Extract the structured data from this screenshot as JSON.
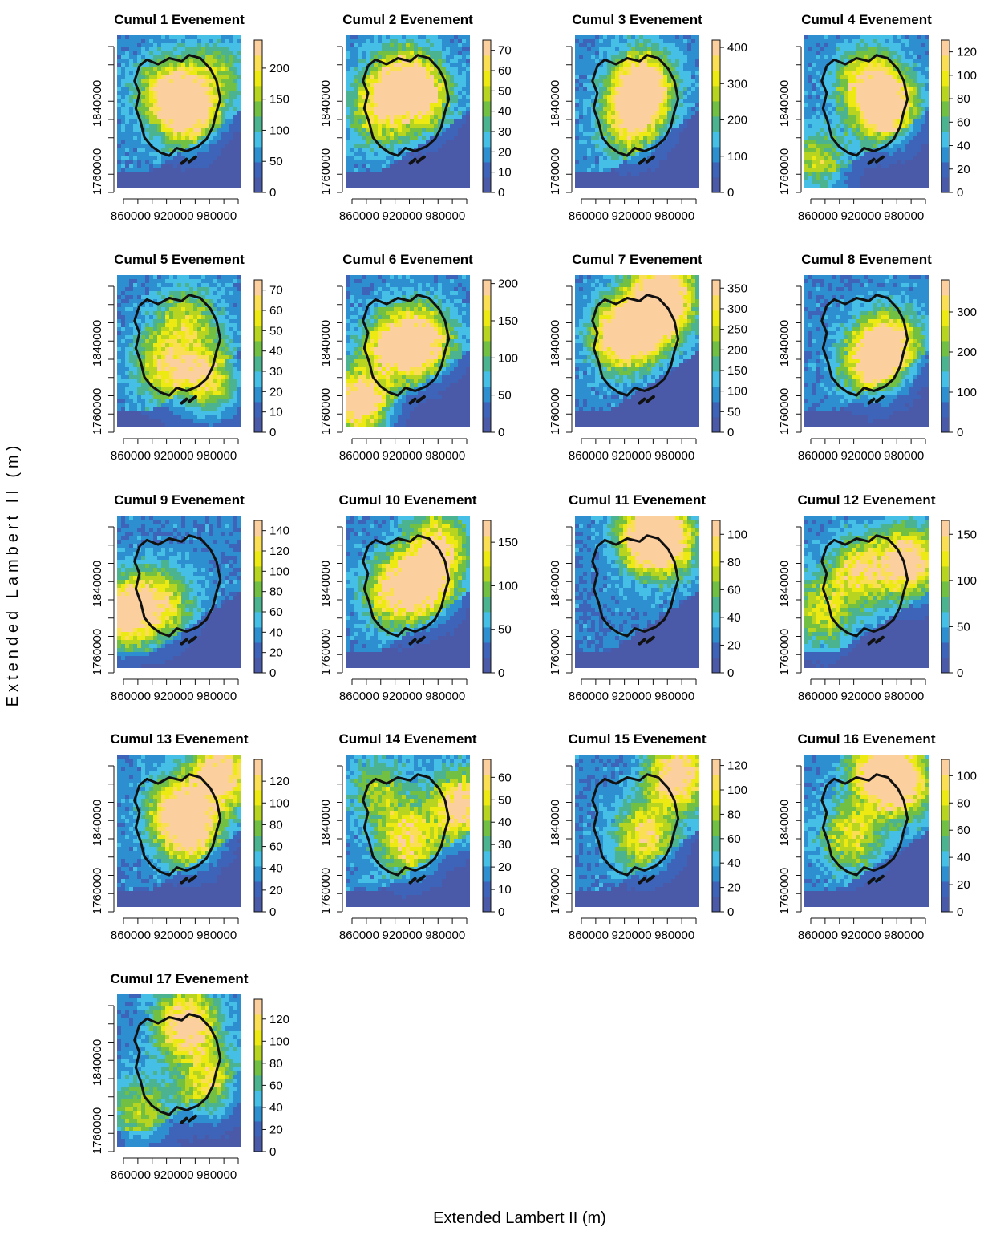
{
  "figure": {
    "xlabel": "Extended Lambert II (m)",
    "ylabel": "Extended Lambert II (m)"
  },
  "palette": [
    "#4a5aa8",
    "#3e64b9",
    "#2e8fd0",
    "#45bfe6",
    "#4bb38f",
    "#72c043",
    "#b7d420",
    "#ecea12",
    "#fadf55",
    "#fccf9e"
  ],
  "chart_data": [
    {
      "type": "heatmap",
      "title": "Cumul 1 Evenement",
      "x_ticks": [
        860000,
        920000,
        980000
      ],
      "y_ticks": [
        1760000,
        1840000
      ],
      "colorbar_ticks": [
        0,
        50,
        100,
        150,
        200
      ],
      "colorbar_range": [
        0,
        245
      ],
      "hotspots": [
        {
          "x": 932000,
          "y": 1832000,
          "v": 230
        },
        {
          "x": 900000,
          "y": 1850000,
          "v": 120
        },
        {
          "x": 970000,
          "y": 1870000,
          "v": 80
        }
      ]
    },
    {
      "type": "heatmap",
      "title": "Cumul 2 Evenement",
      "x_ticks": [
        860000,
        920000,
        980000
      ],
      "y_ticks": [
        1760000,
        1840000
      ],
      "colorbar_ticks": [
        0,
        10,
        20,
        30,
        40,
        50,
        60,
        70
      ],
      "colorbar_range": [
        0,
        75
      ],
      "hotspots": [
        {
          "x": 910000,
          "y": 1860000,
          "v": 50
        },
        {
          "x": 880000,
          "y": 1830000,
          "v": 40
        },
        {
          "x": 940000,
          "y": 1845000,
          "v": 45
        }
      ]
    },
    {
      "type": "heatmap",
      "title": "Cumul 3 Evenement",
      "x_ticks": [
        860000,
        920000,
        980000
      ],
      "y_ticks": [
        1760000,
        1840000
      ],
      "colorbar_ticks": [
        0,
        100,
        200,
        300,
        400
      ],
      "colorbar_range": [
        0,
        420
      ],
      "hotspots": [
        {
          "x": 928000,
          "y": 1855000,
          "v": 400
        },
        {
          "x": 910000,
          "y": 1820000,
          "v": 250
        }
      ]
    },
    {
      "type": "heatmap",
      "title": "Cumul 4 Evenement",
      "x_ticks": [
        860000,
        920000,
        980000
      ],
      "y_ticks": [
        1760000,
        1840000
      ],
      "colorbar_ticks": [
        0,
        20,
        40,
        60,
        80,
        100,
        120
      ],
      "colorbar_range": [
        0,
        130
      ],
      "hotspots": [
        {
          "x": 945000,
          "y": 1835000,
          "v": 120
        },
        {
          "x": 920000,
          "y": 1860000,
          "v": 70
        },
        {
          "x": 855000,
          "y": 1775000,
          "v": 60
        }
      ]
    },
    {
      "type": "heatmap",
      "title": "Cumul 5 Evenement",
      "x_ticks": [
        860000,
        920000,
        980000
      ],
      "y_ticks": [
        1760000,
        1840000
      ],
      "colorbar_ticks": [
        0,
        10,
        20,
        30,
        40,
        50,
        60,
        70
      ],
      "colorbar_range": [
        0,
        75
      ],
      "hotspots": [
        {
          "x": 960000,
          "y": 1800000,
          "v": 55
        },
        {
          "x": 900000,
          "y": 1815000,
          "v": 40
        },
        {
          "x": 930000,
          "y": 1860000,
          "v": 35
        }
      ]
    },
    {
      "type": "heatmap",
      "title": "Cumul 6 Evenement",
      "x_ticks": [
        860000,
        920000,
        980000
      ],
      "y_ticks": [
        1760000,
        1840000
      ],
      "colorbar_ticks": [
        0,
        50,
        100,
        150,
        200
      ],
      "colorbar_range": [
        0,
        205
      ],
      "hotspots": [
        {
          "x": 855000,
          "y": 1775000,
          "v": 200
        },
        {
          "x": 940000,
          "y": 1840000,
          "v": 160
        },
        {
          "x": 900000,
          "y": 1835000,
          "v": 140
        }
      ]
    },
    {
      "type": "heatmap",
      "title": "Cumul 7 Evenement",
      "x_ticks": [
        860000,
        920000,
        980000
      ],
      "y_ticks": [
        1760000,
        1840000
      ],
      "colorbar_ticks": [
        0,
        50,
        100,
        150,
        200,
        250,
        300,
        350
      ],
      "colorbar_range": [
        0,
        370
      ],
      "hotspots": [
        {
          "x": 900000,
          "y": 1845000,
          "v": 340
        },
        {
          "x": 940000,
          "y": 1865000,
          "v": 320
        },
        {
          "x": 960000,
          "y": 1890000,
          "v": 260
        }
      ]
    },
    {
      "type": "heatmap",
      "title": "Cumul 8 Evenement",
      "x_ticks": [
        860000,
        920000,
        980000
      ],
      "y_ticks": [
        1760000,
        1840000
      ],
      "colorbar_ticks": [
        0,
        100,
        200,
        300
      ],
      "colorbar_range": [
        0,
        380
      ],
      "hotspots": [
        {
          "x": 930000,
          "y": 1820000,
          "v": 320
        },
        {
          "x": 955000,
          "y": 1840000,
          "v": 200
        }
      ]
    },
    {
      "type": "heatmap",
      "title": "Cumul 9 Evenement",
      "x_ticks": [
        860000,
        920000,
        980000
      ],
      "y_ticks": [
        1760000,
        1840000
      ],
      "colorbar_ticks": [
        0,
        20,
        40,
        60,
        80,
        100,
        120,
        140
      ],
      "colorbar_range": [
        0,
        150
      ],
      "hotspots": [
        {
          "x": 850000,
          "y": 1810000,
          "v": 130
        },
        {
          "x": 900000,
          "y": 1820000,
          "v": 80
        }
      ]
    },
    {
      "type": "heatmap",
      "title": "Cumul 10 Evenement",
      "x_ticks": [
        860000,
        920000,
        980000
      ],
      "y_ticks": [
        1760000,
        1840000
      ],
      "colorbar_ticks": [
        0,
        50,
        100,
        150
      ],
      "colorbar_range": [
        0,
        175
      ],
      "hotspots": [
        {
          "x": 945000,
          "y": 1840000,
          "v": 140
        },
        {
          "x": 900000,
          "y": 1830000,
          "v": 110
        },
        {
          "x": 960000,
          "y": 1880000,
          "v": 100
        }
      ]
    },
    {
      "type": "heatmap",
      "title": "Cumul 11 Evenement",
      "x_ticks": [
        860000,
        920000,
        980000
      ],
      "y_ticks": [
        1760000,
        1840000
      ],
      "colorbar_ticks": [
        0,
        20,
        40,
        60,
        80,
        100
      ],
      "colorbar_range": [
        0,
        110
      ],
      "hotspots": [
        {
          "x": 935000,
          "y": 1885000,
          "v": 100
        },
        {
          "x": 960000,
          "y": 1880000,
          "v": 70
        }
      ]
    },
    {
      "type": "heatmap",
      "title": "Cumul 12 Evenement",
      "x_ticks": [
        860000,
        920000,
        980000
      ],
      "y_ticks": [
        1760000,
        1840000
      ],
      "colorbar_ticks": [
        0,
        50,
        100,
        150
      ],
      "colorbar_range": [
        0,
        165
      ],
      "hotspots": [
        {
          "x": 975000,
          "y": 1860000,
          "v": 140
        },
        {
          "x": 910000,
          "y": 1850000,
          "v": 100
        },
        {
          "x": 860000,
          "y": 1810000,
          "v": 80
        }
      ]
    },
    {
      "type": "heatmap",
      "title": "Cumul 13 Evenement",
      "x_ticks": [
        860000,
        920000,
        980000
      ],
      "y_ticks": [
        1760000,
        1840000
      ],
      "colorbar_ticks": [
        0,
        20,
        40,
        60,
        80,
        100,
        120
      ],
      "colorbar_range": [
        0,
        140
      ],
      "hotspots": [
        {
          "x": 975000,
          "y": 1885000,
          "v": 120
        },
        {
          "x": 935000,
          "y": 1830000,
          "v": 100
        },
        {
          "x": 915000,
          "y": 1850000,
          "v": 80
        }
      ]
    },
    {
      "type": "heatmap",
      "title": "Cumul 14 Evenement",
      "x_ticks": [
        860000,
        920000,
        980000
      ],
      "y_ticks": [
        1760000,
        1840000
      ],
      "colorbar_ticks": [
        0,
        10,
        20,
        30,
        40,
        50,
        60
      ],
      "colorbar_range": [
        0,
        68
      ],
      "hotspots": [
        {
          "x": 990000,
          "y": 1855000,
          "v": 55
        },
        {
          "x": 920000,
          "y": 1820000,
          "v": 45
        },
        {
          "x": 880000,
          "y": 1870000,
          "v": 25
        }
      ]
    },
    {
      "type": "heatmap",
      "title": "Cumul 15 Evenement",
      "x_ticks": [
        860000,
        920000,
        980000
      ],
      "y_ticks": [
        1760000,
        1840000
      ],
      "colorbar_ticks": [
        0,
        20,
        40,
        60,
        80,
        100,
        120
      ],
      "colorbar_range": [
        0,
        125
      ],
      "hotspots": [
        {
          "x": 975000,
          "y": 1885000,
          "v": 110
        },
        {
          "x": 930000,
          "y": 1825000,
          "v": 80
        }
      ]
    },
    {
      "type": "heatmap",
      "title": "Cumul 16 Evenement",
      "x_ticks": [
        860000,
        920000,
        980000
      ],
      "y_ticks": [
        1760000,
        1840000
      ],
      "colorbar_ticks": [
        0,
        20,
        40,
        60,
        80,
        100
      ],
      "colorbar_range": [
        0,
        112
      ],
      "hotspots": [
        {
          "x": 940000,
          "y": 1890000,
          "v": 100
        },
        {
          "x": 970000,
          "y": 1875000,
          "v": 70
        },
        {
          "x": 900000,
          "y": 1825000,
          "v": 60
        }
      ]
    },
    {
      "type": "heatmap",
      "title": "Cumul 17 Evenement",
      "x_ticks": [
        860000,
        920000,
        980000
      ],
      "y_ticks": [
        1760000,
        1840000
      ],
      "colorbar_ticks": [
        0,
        20,
        40,
        60,
        80,
        100,
        120
      ],
      "colorbar_range": [
        0,
        138
      ],
      "hotspots": [
        {
          "x": 930000,
          "y": 1875000,
          "v": 120
        },
        {
          "x": 960000,
          "y": 1815000,
          "v": 80
        },
        {
          "x": 870000,
          "y": 1790000,
          "v": 60
        }
      ]
    }
  ]
}
